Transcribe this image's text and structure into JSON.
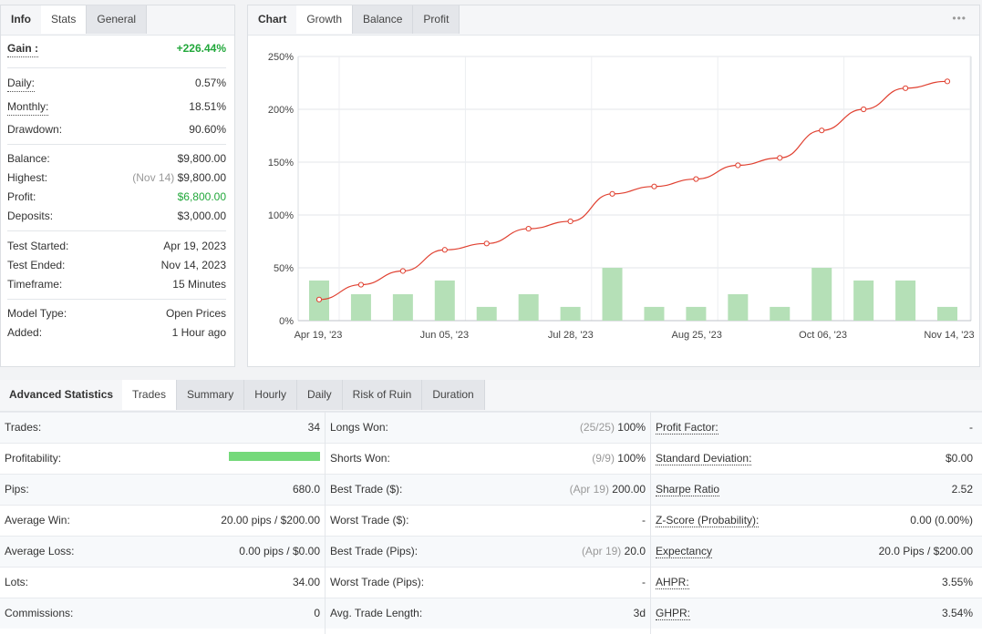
{
  "info": {
    "tabs": [
      "Info",
      "Stats",
      "General"
    ],
    "gain_label": "Gain :",
    "gain_value": "+226.44%",
    "daily_label": "Daily:",
    "daily_value": "0.57%",
    "monthly_label": "Monthly:",
    "monthly_value": "18.51%",
    "drawdown_label": "Drawdown:",
    "drawdown_value": "90.60%",
    "balance_label": "Balance:",
    "balance_value": "$9,800.00",
    "highest_label": "Highest:",
    "highest_date": "(Nov 14)",
    "highest_value": "$9,800.00",
    "profit_label": "Profit:",
    "profit_value": "$6,800.00",
    "deposits_label": "Deposits:",
    "deposits_value": "$3,000.00",
    "test_started_label": "Test Started:",
    "test_started_value": "Apr 19, 2023",
    "test_ended_label": "Test Ended:",
    "test_ended_value": "Nov 14, 2023",
    "timeframe_label": "Timeframe:",
    "timeframe_value": "15 Minutes",
    "model_type_label": "Model Type:",
    "model_type_value": "Open Prices",
    "added_label": "Added:",
    "added_value": "1 Hour ago",
    "colors": {
      "positive": "#22a83b"
    }
  },
  "chart_panel": {
    "tabs": [
      "Chart",
      "Growth",
      "Balance",
      "Profit"
    ],
    "menu_icon": "more-dots-icon",
    "menu_glyph": "•••"
  },
  "chart_data": {
    "type": "line",
    "title": "",
    "y_ticks": [
      "250%",
      "200%",
      "150%",
      "100%",
      "50%",
      "0%"
    ],
    "ylim": [
      0,
      250
    ],
    "x_tick_labels": [
      "Apr 19, '23",
      "Jun 05, '23",
      "Jul 28, '23",
      "Aug 25, '23",
      "Oct 06, '23",
      "Nov 14, '23"
    ],
    "grid": true,
    "series": [
      {
        "kind": "line",
        "color": "#e04030",
        "values": [
          20,
          34,
          47,
          67,
          73,
          87,
          94,
          120,
          127,
          134,
          147,
          154,
          180,
          200,
          220,
          226.44
        ]
      },
      {
        "kind": "bar",
        "color": "#b5e0b7",
        "values": [
          38,
          25,
          25,
          38,
          13,
          25,
          13,
          50,
          13,
          13,
          25,
          13,
          50,
          38,
          38,
          13
        ]
      }
    ]
  },
  "advanced": {
    "title": "Advanced Statistics",
    "tabs": [
      "Trades",
      "Summary",
      "Hourly",
      "Daily",
      "Risk of Ruin",
      "Duration"
    ],
    "rows": [
      {
        "c1": {
          "label": "Trades:",
          "value": "34"
        },
        "c2": {
          "label": "Longs Won:",
          "extra": "(25/25)",
          "value": "100%"
        },
        "c3": {
          "label": "Profit Factor:",
          "value": "-"
        }
      },
      {
        "c1": {
          "label": "Profitability:",
          "value": "",
          "bar_fraction": 1.0
        },
        "c2": {
          "label": "Shorts Won:",
          "extra": "(9/9)",
          "value": "100%"
        },
        "c3": {
          "label": "Standard Deviation:",
          "value": "$0.00"
        }
      },
      {
        "c1": {
          "label": "Pips:",
          "value": "680.0"
        },
        "c2": {
          "label": "Best Trade ($):",
          "extra": "(Apr 19)",
          "value": "200.00"
        },
        "c3": {
          "label": "Sharpe Ratio",
          "value": "2.52"
        }
      },
      {
        "c1": {
          "label": "Average Win:",
          "value": "20.00 pips / $200.00"
        },
        "c2": {
          "label": "Worst Trade ($):",
          "extra": "",
          "value": "-"
        },
        "c3": {
          "label": "Z-Score (Probability):",
          "value": "0.00 (0.00%)"
        }
      },
      {
        "c1": {
          "label": "Average Loss:",
          "value": "0.00 pips / $0.00"
        },
        "c2": {
          "label": "Best Trade (Pips):",
          "extra": "(Apr 19)",
          "value": "20.0"
        },
        "c3": {
          "label": "Expectancy",
          "value": "20.0 Pips / $200.00"
        }
      },
      {
        "c1": {
          "label": "Lots:",
          "value": "34.00"
        },
        "c2": {
          "label": "Worst Trade (Pips):",
          "extra": "",
          "value": "-"
        },
        "c3": {
          "label": "AHPR:",
          "value": "3.55%"
        }
      },
      {
        "c1": {
          "label": "Commissions:",
          "value": "0"
        },
        "c2": {
          "label": "Avg. Trade Length:",
          "extra": "",
          "value": "3d"
        },
        "c3": {
          "label": "GHPR:",
          "value": "3.54%"
        }
      }
    ]
  }
}
